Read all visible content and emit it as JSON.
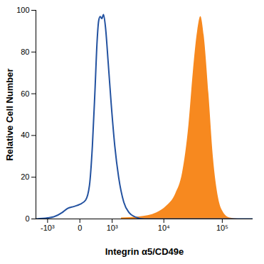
{
  "chart_data": {
    "type": "line",
    "x_label": "Integrin α5/CD49e",
    "y_label": "Relative Cell Number",
    "log": "x",
    "grid": false,
    "xlim": [
      -1800,
      330000
    ],
    "xticks": [
      {
        "value": -1000,
        "label": "-10³"
      },
      0,
      {
        "value": 1000,
        "label": "10³"
      },
      {
        "value": 10000,
        "label": "10⁴"
      },
      {
        "value": 100000,
        "label": "10⁵"
      }
    ],
    "ylim": [
      0,
      100
    ],
    "yticks": [
      0,
      20,
      40,
      60,
      80,
      100
    ],
    "series": [
      {
        "type": "area",
        "color": "#f7891f",
        "x": [
          1600,
          3600,
          7500,
          11000,
          16000,
          21000,
          27000,
          32000,
          38000,
          43000,
          49000,
          59000,
          70000,
          86000,
          105000,
          135000,
          185000,
          330000
        ],
        "values": [
          0.5,
          1,
          3,
          6,
          12,
          22,
          45,
          70,
          90,
          97,
          88,
          60,
          30,
          10,
          3,
          0.5,
          0,
          0
        ]
      },
      {
        "type": "line",
        "color": "#2352a0",
        "x": [
          -1800,
          -1000,
          -700,
          -400,
          -250,
          -100,
          0,
          100,
          180,
          250,
          320,
          380,
          430,
          480,
          540,
          600,
          680,
          800,
          950,
          1150,
          1400,
          1800,
          2300,
          3000,
          4500,
          330000
        ],
        "values": [
          0,
          0.5,
          1,
          3,
          5,
          6,
          7,
          9,
          16,
          35,
          62,
          85,
          95,
          97,
          96,
          98,
          92,
          75,
          55,
          35,
          20,
          8,
          3,
          1,
          0,
          0
        ]
      }
    ]
  }
}
